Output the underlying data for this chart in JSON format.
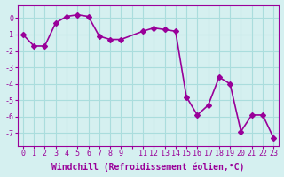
{
  "x": [
    0,
    1,
    2,
    3,
    4,
    5,
    6,
    7,
    8,
    9,
    11,
    12,
    13,
    14,
    15,
    16,
    17,
    18,
    19,
    20,
    21,
    22,
    23
  ],
  "y": [
    -1.0,
    -1.7,
    -1.7,
    -0.3,
    0.1,
    0.2,
    0.1,
    -1.1,
    -1.3,
    -1.3,
    -0.8,
    -0.6,
    -0.7,
    -0.8,
    -4.8,
    -5.9,
    -5.3,
    -3.6,
    -4.0,
    -6.9,
    -5.9,
    -5.9,
    -7.3
  ],
  "line_color": "#990099",
  "marker": "D",
  "markersize": 3,
  "linewidth": 1.2,
  "xlabel": "Windchill (Refroidissement éolien,°C)",
  "xlabel_fontsize": 7,
  "xticks_all": [
    0,
    1,
    2,
    3,
    4,
    5,
    6,
    7,
    8,
    9,
    10,
    11,
    12,
    13,
    14,
    15,
    16,
    17,
    18,
    19,
    20,
    21,
    22,
    23
  ],
  "xtick_show": [
    0,
    1,
    2,
    3,
    4,
    5,
    6,
    7,
    8,
    9,
    11,
    12,
    13,
    14,
    15,
    16,
    17,
    18,
    19,
    20,
    21,
    22,
    23
  ],
  "yticks": [
    0,
    -1,
    -2,
    -3,
    -4,
    -5,
    -6,
    -7
  ],
  "ytick_labels": [
    "0",
    "-1",
    "-2",
    "-3",
    "-4",
    "-5",
    "-6",
    "-7"
  ],
  "ylim": [
    -7.8,
    0.8
  ],
  "xlim": [
    -0.5,
    23.5
  ],
  "bg_color": "#d5f0f0",
  "grid_color": "#aadddd",
  "tick_fontsize": 6
}
